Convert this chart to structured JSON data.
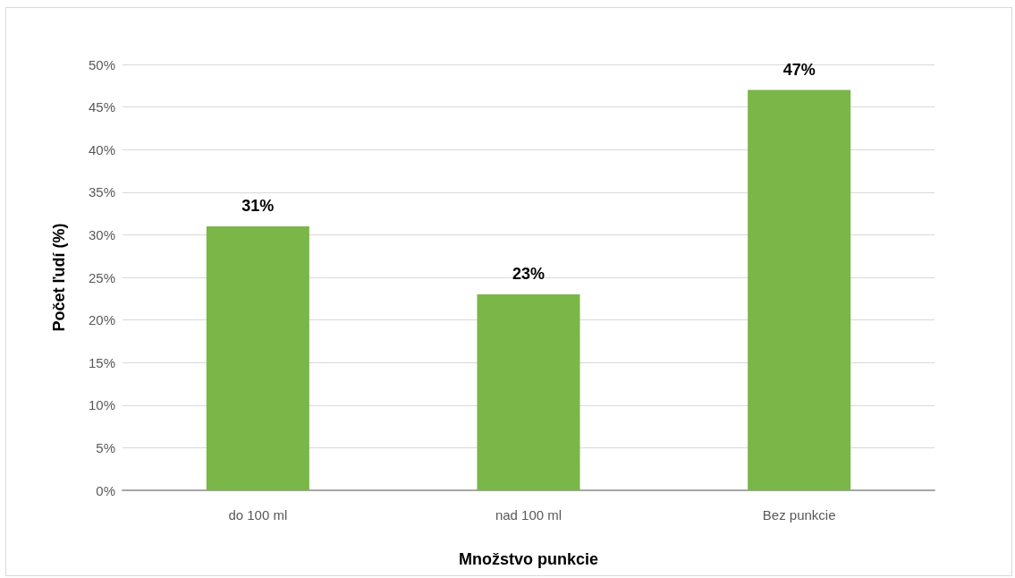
{
  "chart_data": {
    "type": "bar",
    "xlabel": "Množstvo punkcie",
    "ylabel": "Počet ľudí (%)",
    "categories": [
      "do 100 ml",
      "nad 100 ml",
      "Bez punkcie"
    ],
    "values": [
      31,
      23,
      47
    ],
    "color": "#7ab648",
    "value_labels": [
      "31%",
      "23%",
      "47%"
    ],
    "ylim": [
      0,
      50
    ],
    "yticks": [
      {
        "value": 0,
        "label": "0%"
      },
      {
        "value": 5,
        "label": "5%"
      },
      {
        "value": 10,
        "label": "10%"
      },
      {
        "value": 15,
        "label": "15%"
      },
      {
        "value": 20,
        "label": "20%"
      },
      {
        "value": 25,
        "label": "25%"
      },
      {
        "value": 30,
        "label": "30%"
      },
      {
        "value": 35,
        "label": "35%"
      },
      {
        "value": 40,
        "label": "40%"
      },
      {
        "value": 45,
        "label": "45%"
      },
      {
        "value": 50,
        "label": "50%"
      }
    ],
    "grid": "y"
  }
}
